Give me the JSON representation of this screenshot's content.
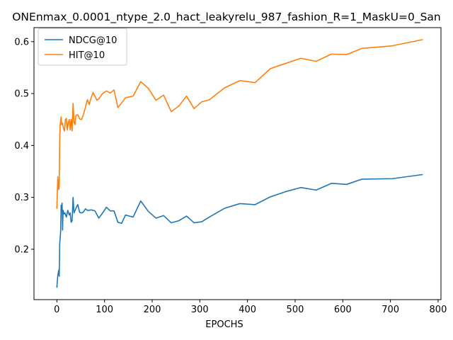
{
  "chart_data": {
    "type": "line",
    "title": "ONEnmax_0.0001_ntype_2.0_hact_leakyrelu_987_fashion_R=1_MaskU=0_San",
    "xlabel": "EPOCHS",
    "ylabel": "",
    "xlim": [
      -48,
      806
    ],
    "ylim": [
      0.103,
      0.627
    ],
    "xticks": [
      0,
      100,
      200,
      300,
      400,
      500,
      600,
      700,
      800
    ],
    "yticks": [
      0.2,
      0.3,
      0.4,
      0.5,
      0.6
    ],
    "ytick_labels": [
      "0.2",
      "0.3",
      "0.4",
      "0.5",
      "0.6"
    ],
    "legend_position": "top-left",
    "grid": false,
    "series": [
      {
        "name": "NDCG@10",
        "color": "#1f77b4",
        "points": [
          [
            0,
            0.126
          ],
          [
            2,
            0.15
          ],
          [
            4,
            0.16
          ],
          [
            5,
            0.148
          ],
          [
            6,
            0.21
          ],
          [
            8,
            0.235
          ],
          [
            9,
            0.285
          ],
          [
            10,
            0.276
          ],
          [
            11,
            0.289
          ],
          [
            12,
            0.237
          ],
          [
            13,
            0.275
          ],
          [
            15,
            0.268
          ],
          [
            17,
            0.27
          ],
          [
            20,
            0.262
          ],
          [
            23,
            0.275
          ],
          [
            26,
            0.266
          ],
          [
            28,
            0.27
          ],
          [
            30,
            0.252
          ],
          [
            32,
            0.255
          ],
          [
            34,
            0.3
          ],
          [
            36,
            0.27
          ],
          [
            40,
            0.279
          ],
          [
            44,
            0.286
          ],
          [
            48,
            0.271
          ],
          [
            52,
            0.27
          ],
          [
            56,
            0.272
          ],
          [
            60,
            0.278
          ],
          [
            64,
            0.275
          ],
          [
            68,
            0.275
          ],
          [
            72,
            0.276
          ],
          [
            80,
            0.274
          ],
          [
            88,
            0.26
          ],
          [
            96,
            0.27
          ],
          [
            104,
            0.281
          ],
          [
            112,
            0.274
          ],
          [
            120,
            0.274
          ],
          [
            128,
            0.252
          ],
          [
            136,
            0.25
          ],
          [
            144,
            0.266
          ],
          [
            160,
            0.262
          ],
          [
            176,
            0.293
          ],
          [
            192,
            0.273
          ],
          [
            208,
            0.26
          ],
          [
            224,
            0.265
          ],
          [
            240,
            0.251
          ],
          [
            256,
            0.255
          ],
          [
            272,
            0.264
          ],
          [
            288,
            0.251
          ],
          [
            304,
            0.253
          ],
          [
            320,
            0.262
          ],
          [
            352,
            0.279
          ],
          [
            384,
            0.288
          ],
          [
            416,
            0.286
          ],
          [
            448,
            0.301
          ],
          [
            480,
            0.311
          ],
          [
            512,
            0.319
          ],
          [
            544,
            0.314
          ],
          [
            576,
            0.327
          ],
          [
            608,
            0.325
          ],
          [
            640,
            0.335
          ],
          [
            704,
            0.336
          ],
          [
            768,
            0.344
          ]
        ]
      },
      {
        "name": "HIT@10",
        "color": "#ff7f0e",
        "points": [
          [
            0,
            0.278
          ],
          [
            2,
            0.34
          ],
          [
            4,
            0.315
          ],
          [
            5,
            0.32
          ],
          [
            6,
            0.41
          ],
          [
            7,
            0.44
          ],
          [
            9,
            0.455
          ],
          [
            10,
            0.44
          ],
          [
            12,
            0.443
          ],
          [
            14,
            0.432
          ],
          [
            16,
            0.428
          ],
          [
            18,
            0.45
          ],
          [
            20,
            0.452
          ],
          [
            22,
            0.43
          ],
          [
            24,
            0.443
          ],
          [
            26,
            0.45
          ],
          [
            28,
            0.43
          ],
          [
            30,
            0.45
          ],
          [
            32,
            0.428
          ],
          [
            34,
            0.481
          ],
          [
            36,
            0.445
          ],
          [
            38,
            0.44
          ],
          [
            40,
            0.458
          ],
          [
            44,
            0.459
          ],
          [
            48,
            0.451
          ],
          [
            52,
            0.45
          ],
          [
            56,
            0.46
          ],
          [
            60,
            0.474
          ],
          [
            64,
            0.488
          ],
          [
            68,
            0.479
          ],
          [
            72,
            0.492
          ],
          [
            76,
            0.502
          ],
          [
            80,
            0.495
          ],
          [
            84,
            0.487
          ],
          [
            88,
            0.49
          ],
          [
            96,
            0.5
          ],
          [
            104,
            0.505
          ],
          [
            112,
            0.501
          ],
          [
            120,
            0.507
          ],
          [
            128,
            0.473
          ],
          [
            136,
            0.482
          ],
          [
            144,
            0.492
          ],
          [
            160,
            0.495
          ],
          [
            176,
            0.523
          ],
          [
            192,
            0.51
          ],
          [
            208,
            0.487
          ],
          [
            224,
            0.497
          ],
          [
            240,
            0.465
          ],
          [
            256,
            0.476
          ],
          [
            272,
            0.495
          ],
          [
            288,
            0.471
          ],
          [
            304,
            0.484
          ],
          [
            320,
            0.488
          ],
          [
            352,
            0.511
          ],
          [
            384,
            0.525
          ],
          [
            416,
            0.521
          ],
          [
            448,
            0.548
          ],
          [
            480,
            0.558
          ],
          [
            512,
            0.568
          ],
          [
            544,
            0.562
          ],
          [
            576,
            0.576
          ],
          [
            608,
            0.575
          ],
          [
            640,
            0.587
          ],
          [
            704,
            0.592
          ],
          [
            768,
            0.604
          ]
        ]
      }
    ]
  }
}
